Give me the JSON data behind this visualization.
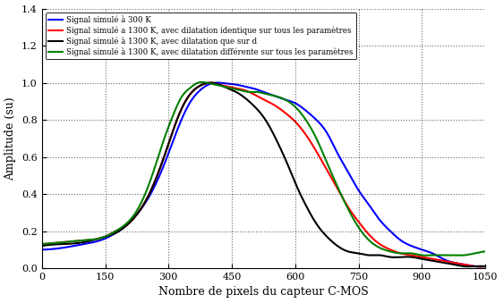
{
  "title": "",
  "xlabel": "Nombre de pixels du capteur C-MOS",
  "ylabel": "Amplitude (su)",
  "xlim": [
    0,
    1050
  ],
  "ylim": [
    0,
    1.4
  ],
  "xticks": [
    0,
    150,
    300,
    450,
    600,
    750,
    900,
    1050
  ],
  "yticks": [
    0,
    0.2,
    0.4,
    0.6,
    0.8,
    1.0,
    1.2,
    1.4
  ],
  "legend": [
    "Signal simulé à 300 K",
    "Signal simulé a 1300 K, avec dilatation identique sur tous les paramètres",
    "Signal simulé à 1300 K, avec dilatation que sur d",
    "Signal simulé à 1300 K, avec dilatation différente sur tous les paramètres"
  ],
  "colors": [
    "blue",
    "red",
    "black",
    "green"
  ],
  "linewidths": [
    1.5,
    1.5,
    1.5,
    1.5
  ],
  "blue_x": [
    0,
    50,
    100,
    150,
    175,
    200,
    225,
    250,
    275,
    300,
    325,
    350,
    375,
    400,
    420,
    440,
    460,
    480,
    500,
    525,
    550,
    575,
    600,
    625,
    650,
    675,
    700,
    725,
    750,
    775,
    800,
    825,
    850,
    875,
    900,
    925,
    950,
    975,
    1000,
    1025,
    1050
  ],
  "blue_y": [
    0.1,
    0.11,
    0.13,
    0.16,
    0.19,
    0.23,
    0.29,
    0.37,
    0.48,
    0.62,
    0.77,
    0.89,
    0.96,
    0.995,
    1.0,
    0.995,
    0.99,
    0.98,
    0.97,
    0.95,
    0.93,
    0.91,
    0.89,
    0.85,
    0.8,
    0.73,
    0.62,
    0.52,
    0.42,
    0.34,
    0.26,
    0.2,
    0.15,
    0.12,
    0.1,
    0.08,
    0.05,
    0.03,
    0.02,
    0.01,
    0.01
  ],
  "red_x": [
    0,
    50,
    100,
    150,
    175,
    200,
    225,
    250,
    275,
    300,
    320,
    340,
    360,
    380,
    400,
    420,
    440,
    460,
    480,
    500,
    525,
    550,
    575,
    600,
    625,
    650,
    675,
    700,
    725,
    750,
    775,
    800,
    825,
    850,
    875,
    900,
    925,
    950,
    975,
    1000,
    1025,
    1050
  ],
  "red_y": [
    0.13,
    0.14,
    0.15,
    0.17,
    0.2,
    0.23,
    0.29,
    0.38,
    0.51,
    0.67,
    0.8,
    0.9,
    0.96,
    0.99,
    1.0,
    0.99,
    0.98,
    0.97,
    0.96,
    0.94,
    0.91,
    0.88,
    0.84,
    0.79,
    0.72,
    0.63,
    0.53,
    0.43,
    0.33,
    0.25,
    0.18,
    0.13,
    0.1,
    0.08,
    0.07,
    0.06,
    0.05,
    0.04,
    0.03,
    0.02,
    0.01,
    0.01
  ],
  "black_x": [
    0,
    50,
    100,
    150,
    175,
    200,
    225,
    250,
    275,
    300,
    320,
    340,
    360,
    380,
    400,
    420,
    440,
    460,
    480,
    500,
    520,
    540,
    560,
    580,
    600,
    625,
    650,
    675,
    700,
    725,
    750,
    775,
    800,
    825,
    850,
    875,
    900,
    925,
    950,
    975,
    1000,
    1025,
    1050
  ],
  "black_y": [
    0.12,
    0.13,
    0.14,
    0.17,
    0.19,
    0.23,
    0.29,
    0.38,
    0.51,
    0.67,
    0.8,
    0.9,
    0.96,
    0.99,
    1.0,
    0.99,
    0.97,
    0.95,
    0.92,
    0.88,
    0.83,
    0.76,
    0.67,
    0.57,
    0.46,
    0.34,
    0.24,
    0.17,
    0.12,
    0.09,
    0.08,
    0.07,
    0.07,
    0.06,
    0.06,
    0.06,
    0.05,
    0.04,
    0.03,
    0.02,
    0.01,
    0.01,
    0.01
  ],
  "green_x": [
    0,
    50,
    100,
    150,
    175,
    200,
    225,
    250,
    270,
    290,
    310,
    330,
    350,
    370,
    390,
    410,
    430,
    450,
    470,
    490,
    510,
    530,
    550,
    575,
    600,
    625,
    650,
    675,
    700,
    725,
    750,
    775,
    800,
    825,
    850,
    875,
    900,
    925,
    950,
    975,
    1000,
    1025,
    1050
  ],
  "green_y": [
    0.13,
    0.14,
    0.15,
    0.17,
    0.2,
    0.24,
    0.31,
    0.43,
    0.56,
    0.7,
    0.82,
    0.92,
    0.97,
    1.0,
    1.0,
    0.99,
    0.98,
    0.97,
    0.96,
    0.95,
    0.95,
    0.94,
    0.93,
    0.91,
    0.87,
    0.8,
    0.7,
    0.57,
    0.44,
    0.32,
    0.22,
    0.15,
    0.11,
    0.09,
    0.08,
    0.08,
    0.07,
    0.07,
    0.07,
    0.07,
    0.07,
    0.08,
    0.09
  ]
}
